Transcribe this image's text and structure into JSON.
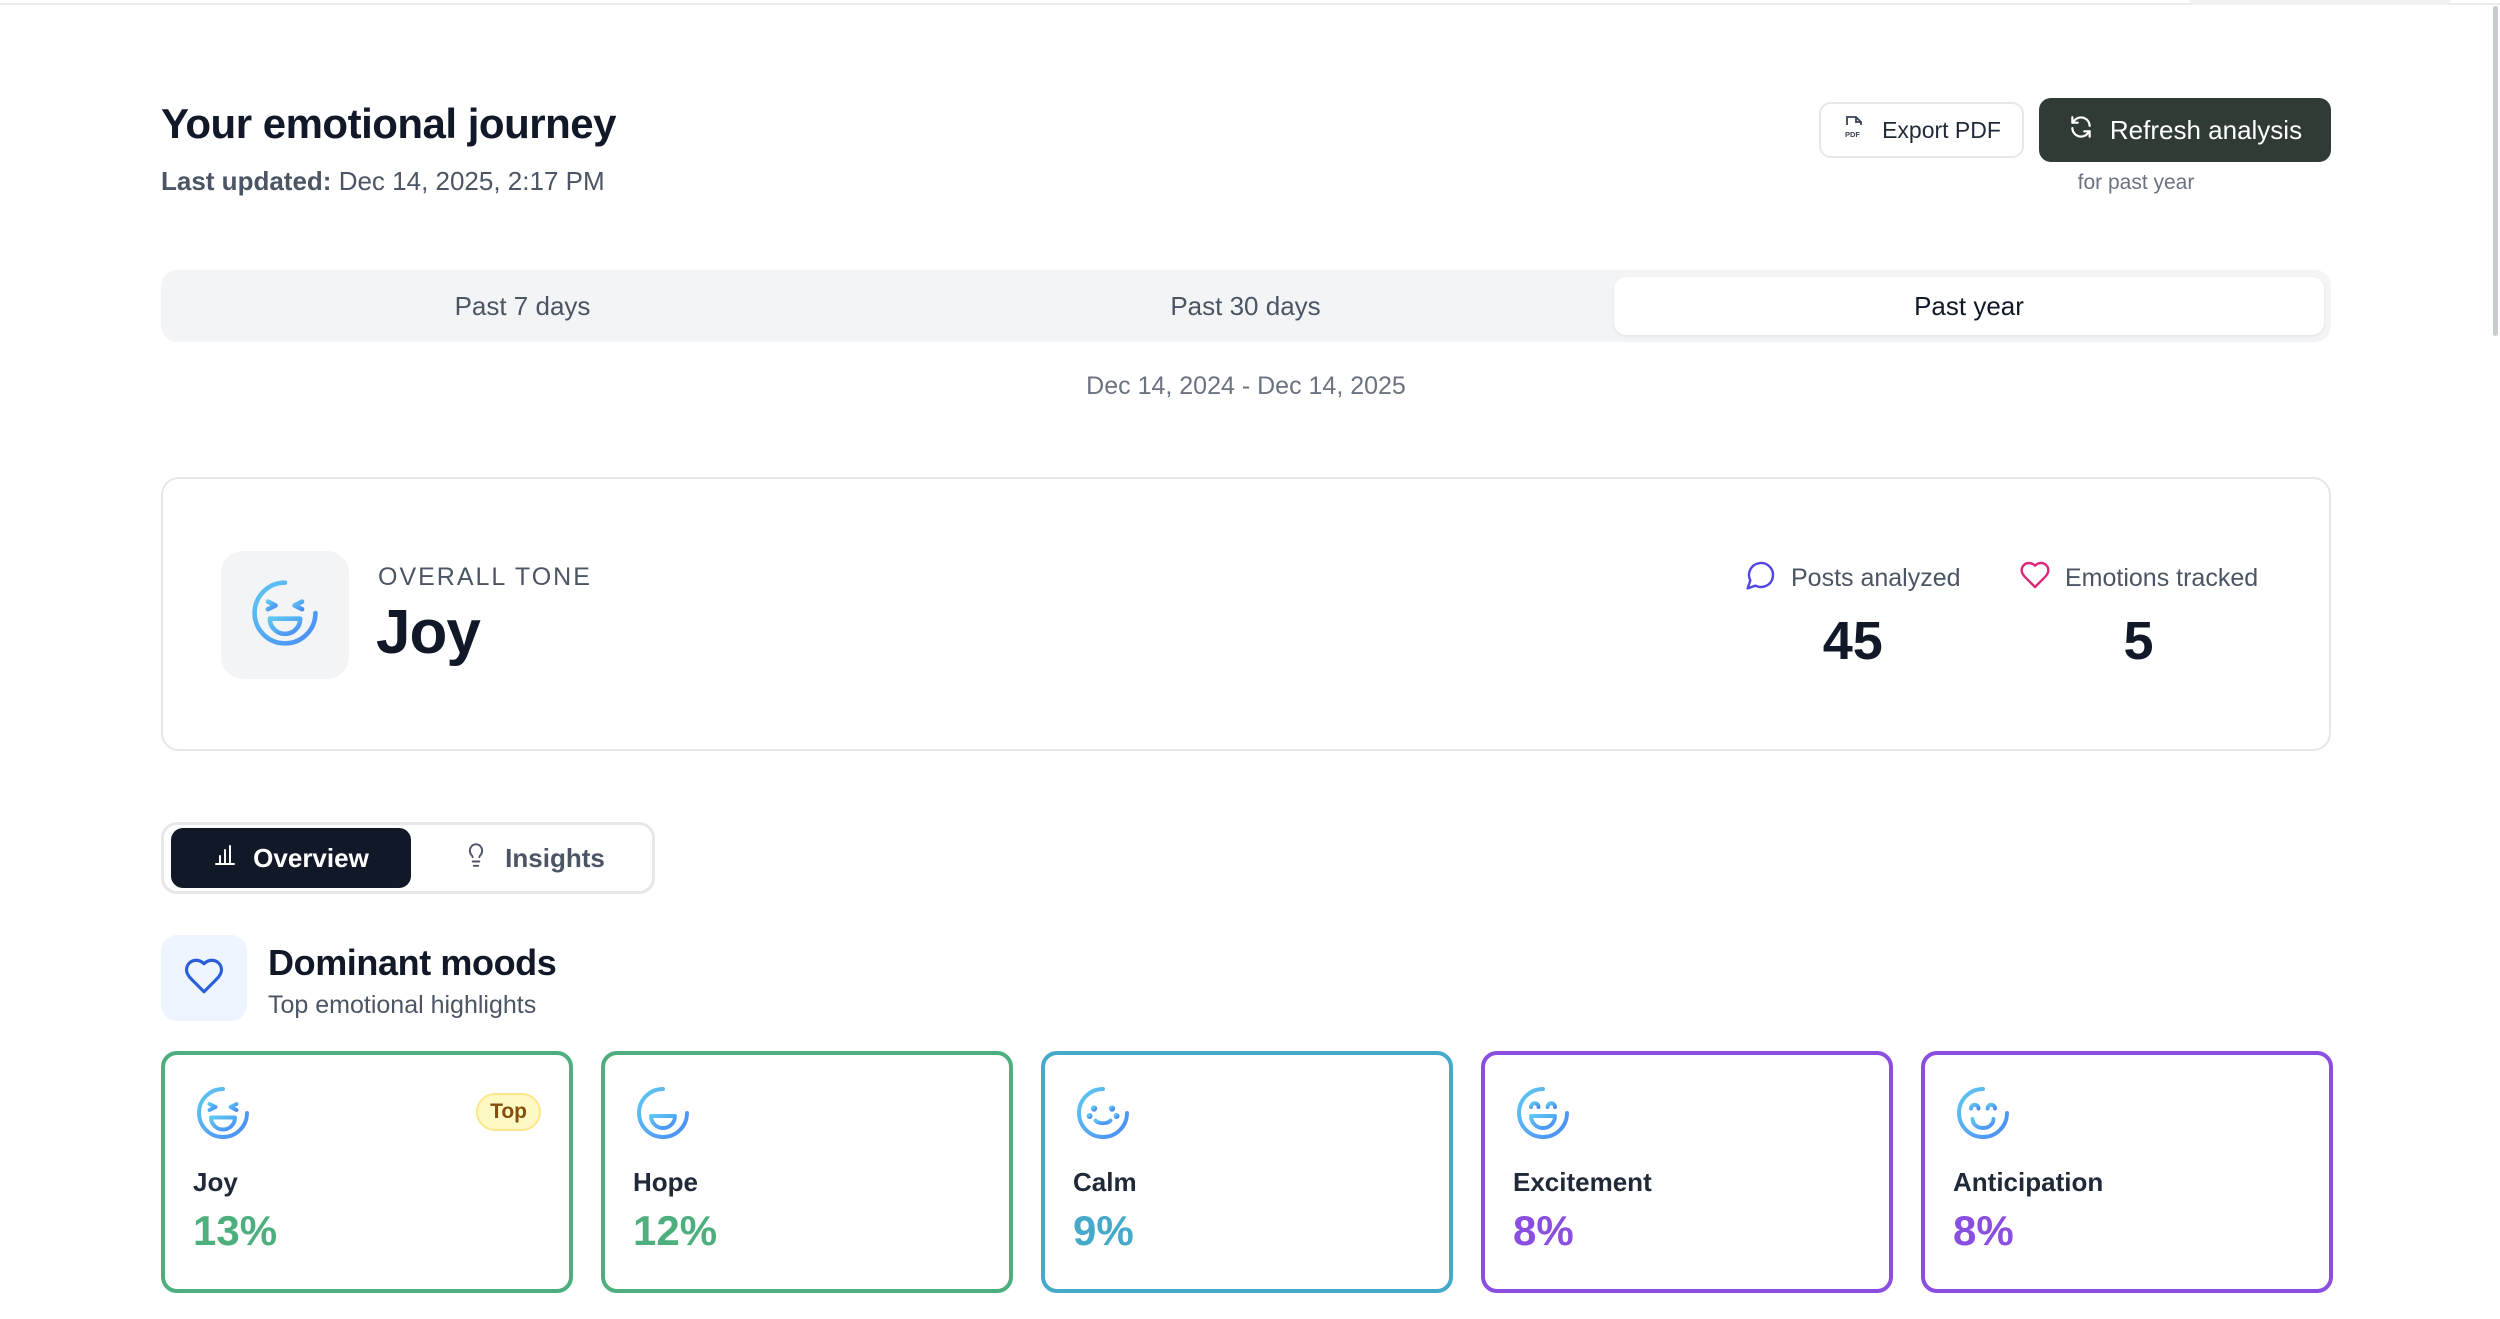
{
  "header": {
    "title": "Your emotional journey",
    "last_updated_label": "Last updated:",
    "last_updated_value": "Dec 14, 2025, 2:17 PM",
    "export_label": "Export PDF",
    "refresh_label": "Refresh analysis",
    "refresh_caption": "for past year"
  },
  "range_tabs": [
    {
      "label": "Past 7 days",
      "active": false
    },
    {
      "label": "Past 30 days",
      "active": false
    },
    {
      "label": "Past year",
      "active": true
    }
  ],
  "date_range": "Dec 14, 2024 - Dec 14, 2025",
  "overall": {
    "label": "OVERALL TONE",
    "value": "Joy",
    "icon": "laughing-face-icon",
    "stats": [
      {
        "label": "Posts analyzed",
        "value": "45",
        "icon": "chat-bubble-icon",
        "color": "#4f46e5"
      },
      {
        "label": "Emotions tracked",
        "value": "5",
        "icon": "heart-icon",
        "color": "#db2777"
      }
    ]
  },
  "view_tabs": [
    {
      "label": "Overview",
      "icon": "bar-chart-icon",
      "active": true
    },
    {
      "label": "Insights",
      "icon": "lightbulb-icon",
      "active": false
    }
  ],
  "dominant_moods": {
    "title": "Dominant moods",
    "subtitle": "Top emotional highlights",
    "icon": "heart-icon",
    "top_badge": "Top",
    "moods": [
      {
        "name": "Joy",
        "percent": "13%",
        "color": "#4caf7d",
        "icon": "laughing-face-icon"
      },
      {
        "name": "Hope",
        "percent": "12%",
        "color": "#4caf7d",
        "icon": "grinning-face-icon"
      },
      {
        "name": "Calm",
        "percent": "9%",
        "color": "#45a9c9",
        "icon": "calm-face-icon"
      },
      {
        "name": "Excitement",
        "percent": "8%",
        "color": "#8a4fe0",
        "icon": "excited-face-icon"
      },
      {
        "name": "Anticipation",
        "percent": "8%",
        "color": "#8a4fe0",
        "icon": "smiling-face-icon"
      }
    ]
  },
  "colors": {
    "refresh_button": "#2f3b34",
    "active_view_tab": "#111827",
    "face_gradient_start": "#5ec8f0",
    "face_gradient_end": "#4a8cf7"
  }
}
